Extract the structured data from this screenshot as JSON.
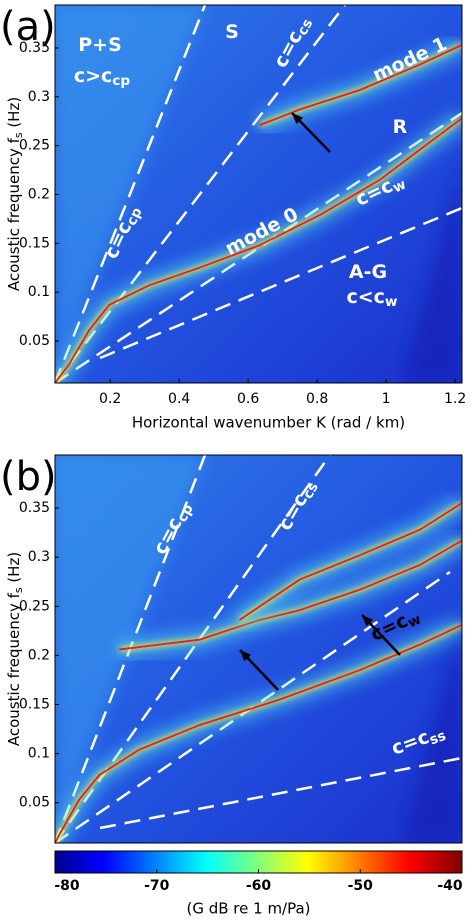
{
  "chart_data": [
    {
      "type": "heatmap",
      "panel_label": "(a)",
      "xlabel": "Horizontal wavenumber K (rad / km)",
      "ylabel": {
        "text": "Acoustic frequency  f",
        "sub": "s",
        "unit": "(Hz)"
      },
      "xlim": [
        0.04,
        1.22
      ],
      "ylim": [
        0.007,
        0.394
      ],
      "xticks": [
        0.2,
        0.4,
        0.6,
        0.8,
        1,
        1.2
      ],
      "yticks": [
        0.05,
        0.1,
        0.15,
        0.2,
        0.25,
        0.3,
        0.35
      ],
      "series": [
        {
          "name": "mode 0",
          "color": "#e3201b",
          "x": [
            0.04,
            0.081,
            0.139,
            0.197,
            0.313,
            0.459,
            0.633,
            0.808,
            0.982,
            1.098,
            1.22
          ],
          "y": [
            0.007,
            0.026,
            0.061,
            0.087,
            0.107,
            0.125,
            0.148,
            0.179,
            0.215,
            0.246,
            0.278
          ]
        },
        {
          "name": "mode 1",
          "color": "#e3201b",
          "x": [
            0.633,
            0.7,
            0.749,
            0.924,
            1.098,
            1.22
          ],
          "y": [
            0.271,
            0.28,
            0.287,
            0.307,
            0.333,
            0.353
          ]
        }
      ],
      "annotations": [
        {
          "text": "P+S"
        },
        {
          "text": "c>c",
          "sub": "cp"
        },
        {
          "text": "S"
        },
        {
          "text": "c=c",
          "sub": "cs"
        },
        {
          "text": "R"
        },
        {
          "text": "c=c",
          "sub": "cp"
        },
        {
          "text": "c=c",
          "sub": "w"
        },
        {
          "text": "A-G"
        },
        {
          "text": "c<c",
          "sub": "w"
        }
      ]
    },
    {
      "type": "heatmap",
      "panel_label": "(b)",
      "ylabel": {
        "text": "Acoustic frequency  f",
        "sub": "s",
        "unit": "(Hz)"
      },
      "xlim": [
        0.04,
        1.22
      ],
      "ylim": [
        0.009,
        0.404
      ],
      "yticks": [
        0.05,
        0.1,
        0.15,
        0.2,
        0.25,
        0.3,
        0.35
      ],
      "series": [
        {
          "color": "#e3201b",
          "x": [
            0.04,
            0.052,
            0.11,
            0.168,
            0.284,
            0.459,
            0.691,
            0.924,
            1.098,
            1.22
          ],
          "y": [
            0.009,
            0.017,
            0.053,
            0.078,
            0.104,
            0.129,
            0.155,
            0.185,
            0.211,
            0.231
          ]
        },
        {
          "color": "#e3201b",
          "x": [
            0.226,
            0.342,
            0.459,
            0.546,
            0.633,
            0.749,
            0.924,
            1.098,
            1.22
          ],
          "y": [
            0.206,
            0.211,
            0.216,
            0.226,
            0.236,
            0.246,
            0.267,
            0.292,
            0.317
          ]
        },
        {
          "color": "#e3201b",
          "x": [
            0.575,
            0.749,
            0.924,
            1.098,
            1.22
          ],
          "y": [
            0.236,
            0.277,
            0.302,
            0.328,
            0.355
          ]
        }
      ],
      "annotations": [
        {
          "text": "c=c",
          "sub": "cp"
        },
        {
          "text": "c=c",
          "sub": "cs"
        },
        {
          "text": "c=c",
          "sub": "w"
        },
        {
          "text": "c=c",
          "sub": "ss"
        }
      ]
    },
    {
      "type": "colorbar",
      "colormap": "jet",
      "label": "(G  dB re 1 m/Pa)",
      "clim": [
        -80,
        -40
      ],
      "ticks": [
        -80,
        -70,
        -60,
        -50,
        -40
      ]
    }
  ]
}
